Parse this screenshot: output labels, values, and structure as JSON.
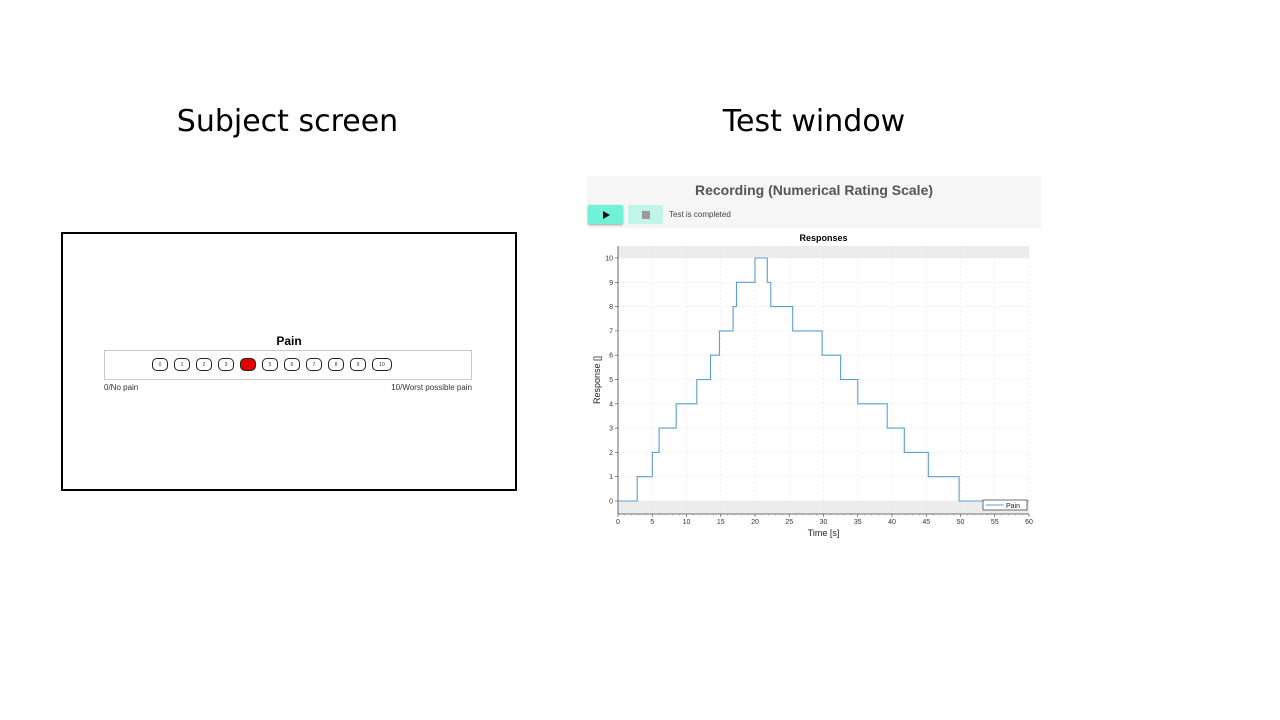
{
  "slide": {
    "left_title": "Subject screen",
    "right_title": "Test window"
  },
  "subject_screen": {
    "scale_title": "Pain",
    "ratings": [
      "0",
      "1",
      "2",
      "3",
      "4",
      "5",
      "6",
      "7",
      "8",
      "9",
      "10"
    ],
    "selected_rating": "4",
    "left_anchor": "0/No pain",
    "right_anchor": "10/Worst possible pain",
    "selected_color": "#e00000"
  },
  "test_window": {
    "title": "Recording (Numerical Rating Scale)",
    "play_icon": "play-icon",
    "stop_icon": "stop-icon",
    "status": "Test is completed",
    "accent_color": "#6ff2d6"
  },
  "chart_data": {
    "type": "line",
    "title": "Responses",
    "xlabel": "Time [s]",
    "ylabel": "Response []",
    "xlim": [
      0,
      60
    ],
    "ylim": [
      0,
      10
    ],
    "xticks": [
      0,
      5,
      10,
      15,
      20,
      25,
      30,
      35,
      40,
      45,
      50,
      55,
      60
    ],
    "yticks": [
      0,
      1,
      2,
      3,
      4,
      5,
      6,
      7,
      8,
      9,
      10
    ],
    "grid": true,
    "legend_position": "bottom-right",
    "series": [
      {
        "name": "Pain",
        "color": "#5b9fd0",
        "step_points": [
          [
            0,
            0
          ],
          [
            2.8,
            0
          ],
          [
            2.8,
            1
          ],
          [
            5,
            1
          ],
          [
            5,
            2
          ],
          [
            6,
            2
          ],
          [
            6,
            3
          ],
          [
            8.5,
            3
          ],
          [
            8.5,
            4
          ],
          [
            11.5,
            4
          ],
          [
            11.5,
            5
          ],
          [
            13.5,
            5
          ],
          [
            13.5,
            6
          ],
          [
            14.8,
            6
          ],
          [
            14.8,
            7
          ],
          [
            16.8,
            7
          ],
          [
            16.8,
            8
          ],
          [
            17.3,
            8
          ],
          [
            17.3,
            9
          ],
          [
            20,
            9
          ],
          [
            20,
            10
          ],
          [
            21.8,
            10
          ],
          [
            21.8,
            9
          ],
          [
            22.3,
            9
          ],
          [
            22.3,
            8
          ],
          [
            25.5,
            8
          ],
          [
            25.5,
            7
          ],
          [
            29.8,
            7
          ],
          [
            29.8,
            6
          ],
          [
            32.5,
            6
          ],
          [
            32.5,
            5
          ],
          [
            35,
            5
          ],
          [
            35,
            4
          ],
          [
            39.3,
            4
          ],
          [
            39.3,
            3
          ],
          [
            41.8,
            3
          ],
          [
            41.8,
            2
          ],
          [
            45.3,
            2
          ],
          [
            45.3,
            1
          ],
          [
            49.8,
            1
          ],
          [
            49.8,
            0
          ],
          [
            60,
            0
          ]
        ]
      }
    ]
  }
}
